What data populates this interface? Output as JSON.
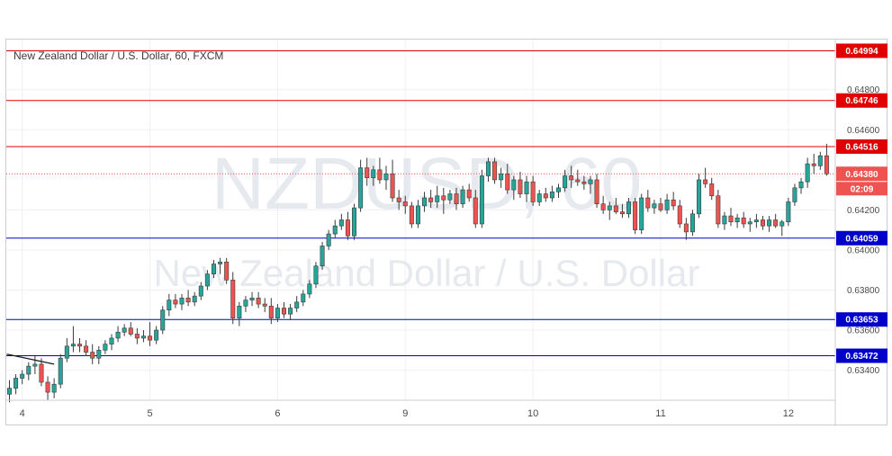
{
  "chart_data": {
    "type": "candlestick",
    "title": "New Zealand Dollar / U.S. Dollar, 60, FXCM",
    "watermark_symbol": "NZDUSD, 60",
    "watermark_name": "New Zealand Dollar / U.S. Dollar",
    "ylim": [
      0.6325,
      0.6505
    ],
    "y_ticks": [
      "0.64800",
      "0.64600",
      "0.64200",
      "0.64000",
      "0.63800",
      "0.63600",
      "0.63400"
    ],
    "x_ticks": [
      {
        "label": "4",
        "bar": 2
      },
      {
        "label": "5",
        "bar": 22
      },
      {
        "label": "6",
        "bar": 42
      },
      {
        "label": "9",
        "bar": 62
      },
      {
        "label": "10",
        "bar": 82
      },
      {
        "label": "11",
        "bar": 102
      },
      {
        "label": "12",
        "bar": 122
      }
    ],
    "current_price": {
      "value": 0.6438,
      "label": "0.64380",
      "countdown": "02:09",
      "color": "#ef5350"
    },
    "resistance_levels": [
      {
        "value": 0.64994,
        "label": "0.64994",
        "color": "#e00000"
      },
      {
        "value": 0.64746,
        "label": "0.64746",
        "color": "#e00000"
      },
      {
        "value": 0.64516,
        "label": "0.64516",
        "color": "#e00000"
      }
    ],
    "support_levels": [
      {
        "value": 0.64059,
        "label": "0.64059",
        "color": "#0000c8"
      },
      {
        "value": 0.63653,
        "label": "0.63653",
        "color": "#0000c8"
      },
      {
        "value": 0.63472,
        "label": "0.63472",
        "color": "#0000c8"
      }
    ],
    "trendline": {
      "from": [
        0,
        0.6348
      ],
      "to": [
        7,
        0.6343
      ],
      "color": "#1c1c1c"
    },
    "up_color": "#26a69a",
    "down_color": "#ef5350",
    "candles": [
      [
        0.6328,
        0.6335,
        0.6324,
        0.6331
      ],
      [
        0.6331,
        0.6338,
        0.6328,
        0.6336
      ],
      [
        0.6336,
        0.634,
        0.6333,
        0.6338
      ],
      [
        0.6338,
        0.6344,
        0.6335,
        0.6342
      ],
      [
        0.6342,
        0.6347,
        0.6338,
        0.6343
      ],
      [
        0.6343,
        0.6346,
        0.6332,
        0.6334
      ],
      [
        0.6334,
        0.6337,
        0.6325,
        0.6329
      ],
      [
        0.6329,
        0.6336,
        0.6326,
        0.6333
      ],
      [
        0.6333,
        0.6348,
        0.6331,
        0.6346
      ],
      [
        0.6346,
        0.6356,
        0.6344,
        0.6352
      ],
      [
        0.6352,
        0.6362,
        0.6349,
        0.6353
      ],
      [
        0.6353,
        0.6356,
        0.6349,
        0.6352
      ],
      [
        0.6352,
        0.6355,
        0.6347,
        0.6349
      ],
      [
        0.6349,
        0.6353,
        0.6343,
        0.6346
      ],
      [
        0.6346,
        0.6352,
        0.6343,
        0.635
      ],
      [
        0.635,
        0.6355,
        0.6348,
        0.6353
      ],
      [
        0.6353,
        0.6358,
        0.635,
        0.6356
      ],
      [
        0.6356,
        0.6362,
        0.6354,
        0.6359
      ],
      [
        0.6359,
        0.6363,
        0.6357,
        0.6361
      ],
      [
        0.6361,
        0.6364,
        0.6357,
        0.6358
      ],
      [
        0.6358,
        0.6361,
        0.6353,
        0.6356
      ],
      [
        0.6356,
        0.636,
        0.6354,
        0.6357
      ],
      [
        0.6357,
        0.6364,
        0.6352,
        0.6355
      ],
      [
        0.6355,
        0.6362,
        0.6353,
        0.636
      ],
      [
        0.636,
        0.6372,
        0.6358,
        0.637
      ],
      [
        0.637,
        0.6378,
        0.6367,
        0.6375
      ],
      [
        0.6375,
        0.6378,
        0.6371,
        0.6373
      ],
      [
        0.6373,
        0.6378,
        0.637,
        0.6376
      ],
      [
        0.6376,
        0.638,
        0.6372,
        0.6374
      ],
      [
        0.6374,
        0.6379,
        0.6372,
        0.6377
      ],
      [
        0.6377,
        0.6384,
        0.6375,
        0.6382
      ],
      [
        0.6382,
        0.639,
        0.638,
        0.6388
      ],
      [
        0.6388,
        0.6395,
        0.6386,
        0.6393
      ],
      [
        0.6393,
        0.6396,
        0.6388,
        0.6394
      ],
      [
        0.6394,
        0.6396,
        0.6383,
        0.6385
      ],
      [
        0.6385,
        0.6389,
        0.6363,
        0.6366
      ],
      [
        0.6366,
        0.6374,
        0.6362,
        0.6372
      ],
      [
        0.6372,
        0.6377,
        0.6369,
        0.6375
      ],
      [
        0.6375,
        0.6379,
        0.6372,
        0.6376
      ],
      [
        0.6376,
        0.6379,
        0.6371,
        0.6373
      ],
      [
        0.6373,
        0.6376,
        0.6369,
        0.6372
      ],
      [
        0.6372,
        0.6376,
        0.6363,
        0.6366
      ],
      [
        0.6366,
        0.6373,
        0.6364,
        0.6371
      ],
      [
        0.6371,
        0.6374,
        0.6366,
        0.6368
      ],
      [
        0.6368,
        0.6373,
        0.6365,
        0.6371
      ],
      [
        0.6371,
        0.6377,
        0.6369,
        0.6374
      ],
      [
        0.6374,
        0.638,
        0.6372,
        0.6378
      ],
      [
        0.6378,
        0.6385,
        0.6376,
        0.6383
      ],
      [
        0.6383,
        0.6394,
        0.6381,
        0.6392
      ],
      [
        0.6392,
        0.6404,
        0.639,
        0.6402
      ],
      [
        0.6402,
        0.641,
        0.64,
        0.6408
      ],
      [
        0.6408,
        0.6415,
        0.6406,
        0.6412
      ],
      [
        0.6412,
        0.6418,
        0.641,
        0.6415
      ],
      [
        0.6415,
        0.6419,
        0.6405,
        0.6407
      ],
      [
        0.6407,
        0.6423,
        0.6405,
        0.6421
      ],
      [
        0.6421,
        0.6445,
        0.6419,
        0.6441
      ],
      [
        0.6441,
        0.6446,
        0.6432,
        0.6436
      ],
      [
        0.6436,
        0.6442,
        0.6432,
        0.644
      ],
      [
        0.644,
        0.6446,
        0.6433,
        0.6435
      ],
      [
        0.6435,
        0.6442,
        0.643,
        0.6438
      ],
      [
        0.6438,
        0.6445,
        0.6424,
        0.6426
      ],
      [
        0.6426,
        0.643,
        0.642,
        0.6424
      ],
      [
        0.6424,
        0.6427,
        0.6418,
        0.6422
      ],
      [
        0.6422,
        0.6424,
        0.6411,
        0.6413
      ],
      [
        0.6413,
        0.6425,
        0.6411,
        0.6422
      ],
      [
        0.6422,
        0.6429,
        0.6419,
        0.6426
      ],
      [
        0.6426,
        0.643,
        0.6421,
        0.6424
      ],
      [
        0.6424,
        0.6432,
        0.6421,
        0.6427
      ],
      [
        0.6427,
        0.6431,
        0.6418,
        0.6425
      ],
      [
        0.6425,
        0.643,
        0.6423,
        0.6428
      ],
      [
        0.6428,
        0.6431,
        0.642,
        0.6423
      ],
      [
        0.6423,
        0.6432,
        0.6421,
        0.643
      ],
      [
        0.643,
        0.6433,
        0.6424,
        0.6426
      ],
      [
        0.6426,
        0.643,
        0.6411,
        0.6413
      ],
      [
        0.6413,
        0.644,
        0.6411,
        0.6437
      ],
      [
        0.6437,
        0.6446,
        0.6434,
        0.6444
      ],
      [
        0.6444,
        0.6446,
        0.6433,
        0.6435
      ],
      [
        0.6435,
        0.6441,
        0.6431,
        0.6438
      ],
      [
        0.6438,
        0.6443,
        0.6428,
        0.643
      ],
      [
        0.643,
        0.6437,
        0.6425,
        0.6435
      ],
      [
        0.6435,
        0.6439,
        0.6426,
        0.6428
      ],
      [
        0.6428,
        0.6437,
        0.6424,
        0.6434
      ],
      [
        0.6434,
        0.6437,
        0.6422,
        0.6424
      ],
      [
        0.6424,
        0.643,
        0.6422,
        0.6428
      ],
      [
        0.6428,
        0.6431,
        0.6424,
        0.6426
      ],
      [
        0.6426,
        0.6432,
        0.6424,
        0.6429
      ],
      [
        0.6429,
        0.6433,
        0.6426,
        0.6431
      ],
      [
        0.6431,
        0.644,
        0.6429,
        0.6437
      ],
      [
        0.6437,
        0.6442,
        0.6431,
        0.6435
      ],
      [
        0.6435,
        0.644,
        0.6432,
        0.6434
      ],
      [
        0.6434,
        0.6437,
        0.643,
        0.6433
      ],
      [
        0.6433,
        0.6437,
        0.6428,
        0.6435
      ],
      [
        0.6435,
        0.6438,
        0.6421,
        0.6423
      ],
      [
        0.6423,
        0.6427,
        0.6418,
        0.642
      ],
      [
        0.642,
        0.6424,
        0.6415,
        0.6422
      ],
      [
        0.6422,
        0.6426,
        0.6418,
        0.6419
      ],
      [
        0.6419,
        0.6423,
        0.6416,
        0.6418
      ],
      [
        0.6418,
        0.6426,
        0.6416,
        0.6424
      ],
      [
        0.6424,
        0.6426,
        0.6408,
        0.641
      ],
      [
        0.641,
        0.6428,
        0.6408,
        0.6426
      ],
      [
        0.6426,
        0.643,
        0.6419,
        0.6421
      ],
      [
        0.6421,
        0.6425,
        0.6418,
        0.6423
      ],
      [
        0.6423,
        0.6426,
        0.6419,
        0.642
      ],
      [
        0.642,
        0.6428,
        0.6418,
        0.6425
      ],
      [
        0.6425,
        0.6429,
        0.642,
        0.6422
      ],
      [
        0.6422,
        0.6425,
        0.6411,
        0.6413
      ],
      [
        0.6413,
        0.6416,
        0.6405,
        0.6409
      ],
      [
        0.6409,
        0.642,
        0.6407,
        0.6418
      ],
      [
        0.6418,
        0.6438,
        0.6416,
        0.6435
      ],
      [
        0.6435,
        0.6441,
        0.6431,
        0.6433
      ],
      [
        0.6433,
        0.6436,
        0.6425,
        0.6427
      ],
      [
        0.6427,
        0.643,
        0.6411,
        0.6413
      ],
      [
        0.6413,
        0.6419,
        0.641,
        0.6417
      ],
      [
        0.6417,
        0.6421,
        0.6412,
        0.6414
      ],
      [
        0.6414,
        0.6418,
        0.6411,
        0.6416
      ],
      [
        0.6416,
        0.6419,
        0.6411,
        0.6413
      ],
      [
        0.6413,
        0.6416,
        0.6409,
        0.6414
      ],
      [
        0.6414,
        0.6418,
        0.6411,
        0.6415
      ],
      [
        0.6415,
        0.6417,
        0.641,
        0.6412
      ],
      [
        0.6412,
        0.6417,
        0.6409,
        0.6415
      ],
      [
        0.6415,
        0.6418,
        0.6411,
        0.6412
      ],
      [
        0.6412,
        0.6415,
        0.6407,
        0.6414
      ],
      [
        0.6414,
        0.6426,
        0.6412,
        0.6424
      ],
      [
        0.6424,
        0.6433,
        0.6422,
        0.6431
      ],
      [
        0.6431,
        0.6436,
        0.6428,
        0.6434
      ],
      [
        0.6434,
        0.6446,
        0.6431,
        0.6443
      ],
      [
        0.6443,
        0.6448,
        0.6438,
        0.6442
      ],
      [
        0.6442,
        0.6449,
        0.644,
        0.6447
      ],
      [
        0.6447,
        0.6453,
        0.6437,
        0.6438
      ]
    ]
  }
}
